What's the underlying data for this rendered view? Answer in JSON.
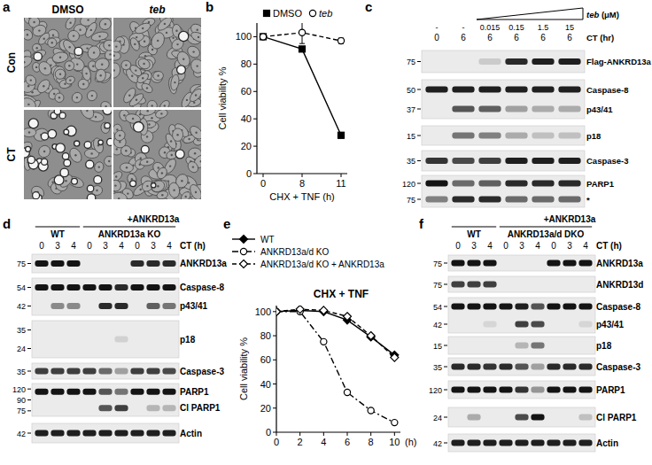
{
  "chart_data": [
    {
      "type": "line",
      "panel_label": "b",
      "categories": [
        "0",
        "8",
        "11"
      ],
      "x_label": "CHX + TNF (h)",
      "y_label": "Cell viability %",
      "ylim": [
        0,
        110
      ],
      "yticks": [
        0,
        20,
        40,
        60,
        80,
        100
      ],
      "legend": "top",
      "series": [
        {
          "name": "DMSO",
          "color": "#000000",
          "marker": "filled-square",
          "line_style": "solid",
          "values": [
            100,
            91,
            28
          ],
          "errors": [
            0,
            1,
            2
          ]
        },
        {
          "name": "teb",
          "color": "#000000",
          "marker": "open-circle",
          "line_style": "dashed",
          "values": [
            100,
            103,
            97
          ],
          "errors": [
            0,
            8,
            2
          ]
        }
      ]
    },
    {
      "type": "line",
      "panel_label": "e",
      "title": "CHX + TNF",
      "x": [
        0,
        2,
        4,
        6,
        8,
        10
      ],
      "xlim": [
        0,
        10.5
      ],
      "xticks": [
        0,
        2,
        4,
        6,
        8,
        10
      ],
      "x_label": "(h)",
      "y_label": "Cell viability %",
      "ylim": [
        0,
        105
      ],
      "yticks": [
        0,
        20,
        40,
        60,
        80,
        100
      ],
      "legend": "top-left",
      "series": [
        {
          "name": "WT",
          "color": "#000000",
          "marker": "filled-diamond",
          "line_style": "solid",
          "values": [
            100,
            101,
            100,
            93,
            79,
            64
          ]
        },
        {
          "name": "ANKRD13a/d KO",
          "color": "#000000",
          "marker": "open-circle",
          "line_style": "dash-dot",
          "values": [
            100,
            100,
            75,
            33,
            18,
            8
          ]
        },
        {
          "name": "ANKRD13a/d KO + ANKRD13a",
          "color": "#000000",
          "marker": "open-diamond",
          "line_style": "dashed",
          "values": [
            100,
            102,
            101,
            96,
            80,
            62
          ]
        }
      ]
    }
  ],
  "micrographs": {
    "panel_label": "a",
    "columns": [
      "DMSO",
      "teb"
    ],
    "rows": [
      "Con",
      "CT"
    ]
  },
  "blots": [
    {
      "panel_label": "c",
      "treatment_label": "teb (μM)",
      "doses": [
        "-",
        "-",
        "0.015",
        "0.15",
        "1.5",
        "15"
      ],
      "time_label": "CT (hr)",
      "times": [
        0,
        6,
        6,
        6,
        6,
        6
      ],
      "rows": [
        {
          "markers": [
            75
          ],
          "labels": [
            "Flag-ANKRD13a"
          ],
          "bands": [
            [
              0,
              0,
              0.15,
              0.9,
              0.95,
              0.95
            ]
          ]
        },
        {
          "markers": [
            50,
            37
          ],
          "labels": [
            "Caspase-8",
            "p43/41"
          ],
          "bands": [
            [
              0.95,
              0.95,
              0.95,
              0.95,
              0.95,
              0.95
            ],
            [
              0,
              0.7,
              0.65,
              0.35,
              0.3,
              0.3
            ]
          ]
        },
        {
          "markers": [
            15
          ],
          "labels": [
            "p18"
          ],
          "bands": [
            [
              0,
              0.55,
              0.5,
              0.3,
              0.2,
              0.2
            ]
          ]
        },
        {
          "markers": [
            35
          ],
          "labels": [
            "Caspase-3"
          ],
          "bands": [
            [
              0.85,
              0.75,
              0.8,
              0.95,
              0.95,
              0.95
            ]
          ]
        },
        {
          "markers": [
            120,
            75
          ],
          "labels": [
            "PARP1",
            "*"
          ],
          "bands": [
            [
              1,
              0.6,
              0.65,
              0.9,
              0.9,
              0.9
            ],
            [
              0.5,
              0.9,
              0.9,
              0.6,
              0.6,
              0.6
            ]
          ]
        }
      ]
    },
    {
      "panel_label": "d",
      "time_label": "CT (h)",
      "groups": [
        {
          "label": "WT",
          "times": [
            0,
            3,
            4
          ]
        },
        {
          "label": "ANKRD13a KO",
          "times": [
            0,
            3,
            4,
            0,
            3,
            4
          ],
          "rescue_label": "+ANKRD13a"
        }
      ],
      "rows": [
        {
          "markers": [
            75
          ],
          "labels": [
            "ANKRD13a"
          ],
          "bands": [
            [
              1,
              1,
              1,
              0,
              0,
              0,
              0.9,
              0.9,
              0.9
            ]
          ]
        },
        {
          "markers": [
            54,
            42
          ],
          "labels": [
            "Caspase-8",
            "p43/41"
          ],
          "bands": [
            [
              1,
              1,
              1,
              1,
              1,
              0.9,
              1,
              1,
              1
            ],
            [
              0,
              0.45,
              0.45,
              0,
              0.9,
              0.9,
              0,
              0.65,
              0.55
            ]
          ]
        },
        {
          "markers": [
            35,
            24
          ],
          "labels": [
            "p18"
          ],
          "bands": [
            [
              0,
              0,
              0,
              0,
              0,
              0.12,
              0,
              0,
              0
            ]
          ]
        },
        {
          "markers": [
            35
          ],
          "labels": [
            "Caspase-3"
          ],
          "bands": [
            [
              0.8,
              0.8,
              0.8,
              0.8,
              0.6,
              0.35,
              0.8,
              0.8,
              0.75
            ]
          ]
        },
        {
          "markers": [
            120,
            90,
            75
          ],
          "labels": [
            "PARP1",
            "Cl PARP1"
          ],
          "bands": [
            [
              1,
              1,
              1,
              1,
              0.7,
              0.55,
              1,
              1,
              1
            ],
            [
              0,
              0,
              0,
              0,
              0.7,
              0.8,
              0,
              0.25,
              0.25
            ]
          ]
        },
        {
          "markers": [
            42
          ],
          "labels": [
            "Actin"
          ],
          "bands": [
            [
              0.95,
              0.95,
              0.95,
              0.95,
              0.95,
              0.95,
              0.95,
              0.95,
              0.95
            ]
          ]
        }
      ]
    },
    {
      "panel_label": "f",
      "time_label": "CT (h)",
      "groups": [
        {
          "label": "WT",
          "times": [
            0,
            3,
            4
          ]
        },
        {
          "label": "ANKRD13a/d DKO",
          "times": [
            0,
            3,
            4,
            0,
            3,
            4
          ],
          "rescue_label": "+ANKRD13a"
        }
      ],
      "rows": [
        {
          "markers": [
            75
          ],
          "labels": [
            "ANKRD13a"
          ],
          "bands": [
            [
              1,
              1,
              1,
              0,
              0,
              0,
              1,
              1,
              1
            ]
          ]
        },
        {
          "markers": [
            75
          ],
          "labels": [
            "ANKRD13d"
          ],
          "bands": [
            [
              0.8,
              0.8,
              0.8,
              0,
              0,
              0,
              0,
              0,
              0
            ]
          ]
        },
        {
          "markers": [
            54,
            42
          ],
          "labels": [
            "Caspase-8",
            "p43/41"
          ],
          "bands": [
            [
              1,
              1,
              1,
              1,
              0.95,
              0.7,
              1,
              1,
              1
            ],
            [
              0,
              0,
              0.1,
              0,
              0.8,
              0.75,
              0,
              0,
              0.1
            ]
          ]
        },
        {
          "markers": [
            15
          ],
          "labels": [
            "p18"
          ],
          "bands": [
            [
              0,
              0,
              0,
              0,
              0.25,
              0.55,
              0,
              0,
              0
            ]
          ]
        },
        {
          "markers": [
            35
          ],
          "labels": [
            "Caspase-3"
          ],
          "bands": [
            [
              0.9,
              0.9,
              0.85,
              0.9,
              0.7,
              0.35,
              0.9,
              0.9,
              0.9
            ]
          ]
        },
        {
          "markers": [
            120
          ],
          "labels": [
            "PARP1"
          ],
          "bands": [
            [
              1,
              1,
              1,
              1,
              0.85,
              0.4,
              1,
              1,
              1
            ]
          ]
        },
        {
          "markers": [
            24
          ],
          "labels": [
            "Cl PARP1"
          ],
          "bands": [
            [
              0,
              0.3,
              0,
              0,
              0.75,
              1,
              0,
              0,
              0.2
            ]
          ]
        },
        {
          "markers": [
            42
          ],
          "labels": [
            "Actin"
          ],
          "bands": [
            [
              0.95,
              0.95,
              0.95,
              0.95,
              0.95,
              0.95,
              0.95,
              0.95,
              0.95
            ]
          ]
        }
      ]
    }
  ]
}
